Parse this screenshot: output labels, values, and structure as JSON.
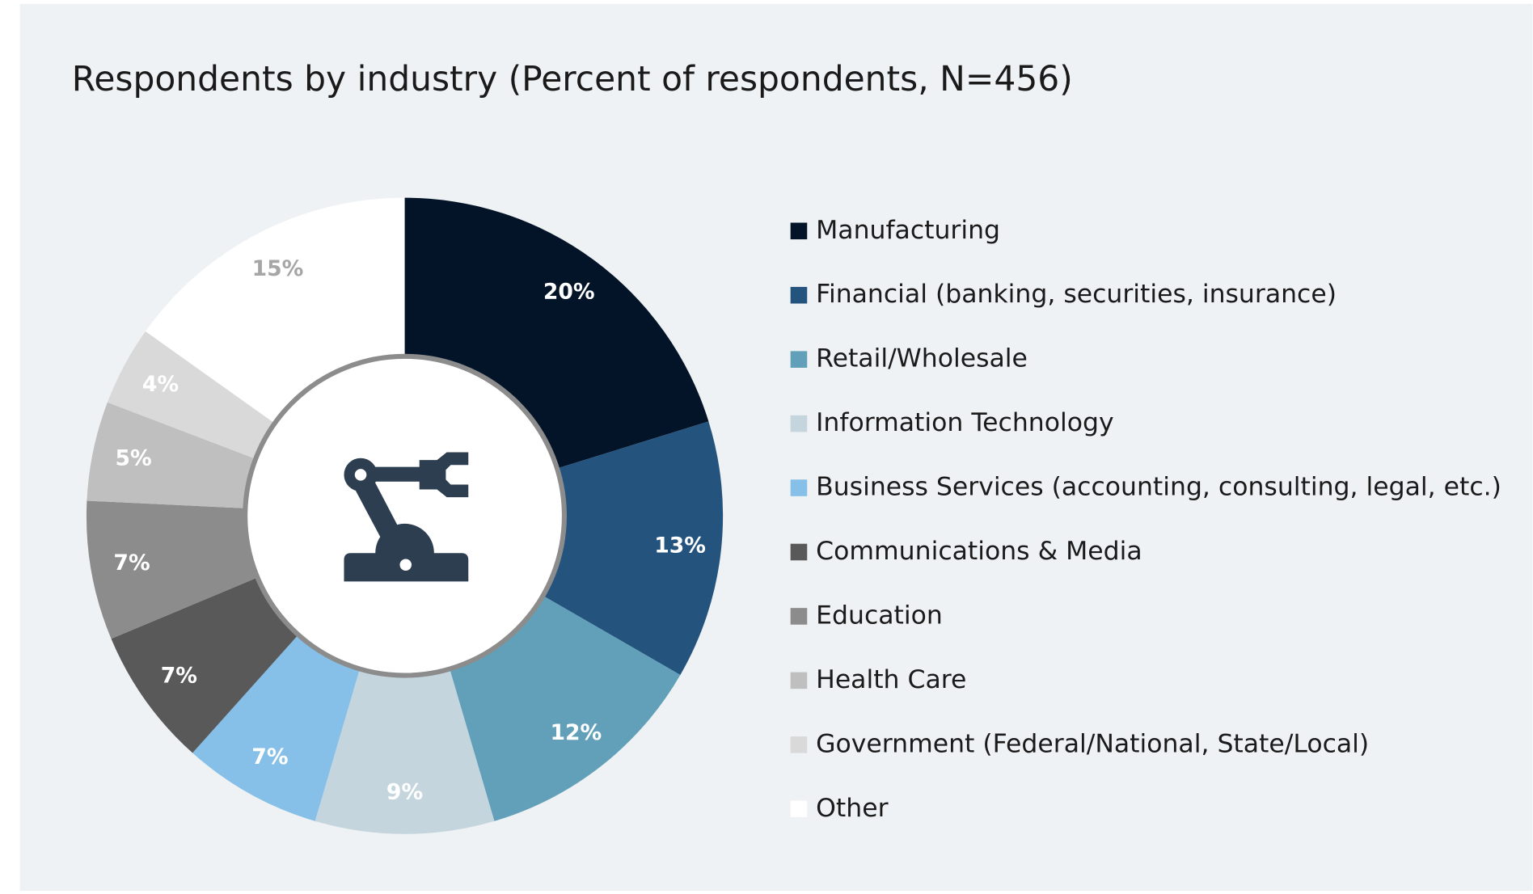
{
  "chart_data": {
    "type": "donut",
    "title": "Respondents by industry (Percent of respondents, N=456)",
    "categories": [
      "Manufacturing",
      "Financial (banking, securities, insurance)",
      "Retail/Wholesale",
      "Information Technology",
      "Business Services (accounting, consulting, legal, etc.)",
      "Communications & Media",
      "Education",
      "Health Care",
      "Government (Federal/National, State/Local)",
      "Other"
    ],
    "values": [
      20,
      13,
      12,
      9,
      7,
      7,
      7,
      5,
      4,
      15
    ],
    "value_labels": [
      "20%",
      "13%",
      "12%",
      "9%",
      "7%",
      "7%",
      "7%",
      "5%",
      "4%",
      "15%"
    ],
    "colors": [
      "#041428",
      "#24547e",
      "#62a0ba",
      "#c5d5de",
      "#86c0e8",
      "#595959",
      "#8c8c8c",
      "#bfbfbf",
      "#d9d9d9",
      "#ffffff"
    ],
    "label_colors": [
      "#ffffff",
      "#ffffff",
      "#ffffff",
      "#ffffff",
      "#ffffff",
      "#ffffff",
      "#ffffff",
      "#ffffff",
      "#ffffff",
      "#a6a6a6"
    ],
    "legend": "right"
  }
}
